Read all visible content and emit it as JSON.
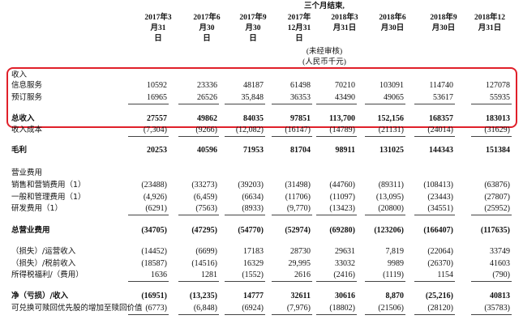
{
  "header": {
    "period": "三个月结束,",
    "columns": [
      [
        "2017年3",
        "月31",
        "日"
      ],
      [
        "2017年6",
        "月30",
        "日"
      ],
      [
        "2017年9",
        "月30",
        "日"
      ],
      [
        "2017年",
        "12月31",
        "日"
      ],
      [
        "2018年3",
        "月31日"
      ],
      [
        "2018年6",
        "月30日"
      ],
      [
        "2018年9",
        "月30日"
      ],
      [
        "2018年12",
        "月31日"
      ]
    ],
    "audit": "(未经审核)",
    "unit": "(人民币千元)"
  },
  "table": {
    "rows": [
      {
        "label": "收入"
      },
      {
        "label": "信息服务",
        "values": [
          "10592",
          "23336",
          "48187",
          "61498",
          "70210",
          "103091",
          "114740",
          "127078"
        ]
      },
      {
        "label": "预订服务",
        "values": [
          "16965",
          "26526",
          "35,848",
          "36353",
          "43490",
          "49065",
          "53617",
          "55935"
        ]
      },
      {
        "label": "总收入",
        "values": [
          "27557",
          "49862",
          "84035",
          "97851",
          "113,700",
          "152,156",
          "168357",
          "183013"
        ]
      },
      {
        "label": "收入成本",
        "values": [
          "(7,304)",
          "(9266)",
          "(12,082)",
          "(16147)",
          "(14789)",
          "(21131)",
          "(24014)",
          "(31629)"
        ]
      },
      {
        "label": "毛利",
        "values": [
          "20253",
          "40596",
          "71953",
          "81704",
          "98911",
          "131025",
          "144343",
          "151384"
        ]
      },
      {
        "label": "营业费用"
      },
      {
        "label": "销售和营销费用（1）",
        "values": [
          "(23488)",
          "(33273)",
          "(39203)",
          "(31498)",
          "(44760)",
          "(89311)",
          "(108413)",
          "(63876)"
        ]
      },
      {
        "label": "一般和管理费用（1）",
        "values": [
          "(4,926)",
          "(6,459)",
          "(6634)",
          "(11706)",
          "(11097)",
          "(13,095)",
          "(23443)",
          "(27807)"
        ]
      },
      {
        "label": "研发费用（1）",
        "values": [
          "(6291)",
          "(7563)",
          "(8933)",
          "(9,770)",
          "(13423)",
          "(20800)",
          "(34551)",
          "(25952)"
        ]
      },
      {
        "label": "总营业费用",
        "values": [
          "(34705)",
          "(47295)",
          "(54770)",
          "(52974)",
          "(69280)",
          "(123206)",
          "(166407)",
          "(117635)"
        ]
      },
      {
        "label": "（损失）/运营收入",
        "values": [
          "(14452)",
          "(6699)",
          "17183",
          "28730",
          "29631",
          "7,819",
          "(22064)",
          "33749"
        ]
      },
      {
        "label": "（损失）/税前收入",
        "values": [
          "(18587)",
          "(14516)",
          "16329",
          "29,995",
          "33032",
          "9989",
          "(26370)",
          "41603"
        ]
      },
      {
        "label": "所得税福利/（费用）",
        "values": [
          "1636",
          "1281",
          "(1552)",
          "2616",
          "(2416)",
          "(1119)",
          "1154",
          "(790)"
        ]
      },
      {
        "label": "净（亏损）/收入",
        "values": [
          "(16951)",
          "(13,235)",
          "14777",
          "32611",
          "30616",
          "8,870",
          "(25,216)",
          "40813"
        ]
      },
      {
        "label": "可兑换可赎回优先股的增加至赎回价值",
        "values": [
          "(6773)",
          "(6,848)",
          "(6924)",
          "(7,976)",
          "(18802)",
          "(21506)",
          "(28120)",
          "(35783)"
        ]
      }
    ]
  }
}
